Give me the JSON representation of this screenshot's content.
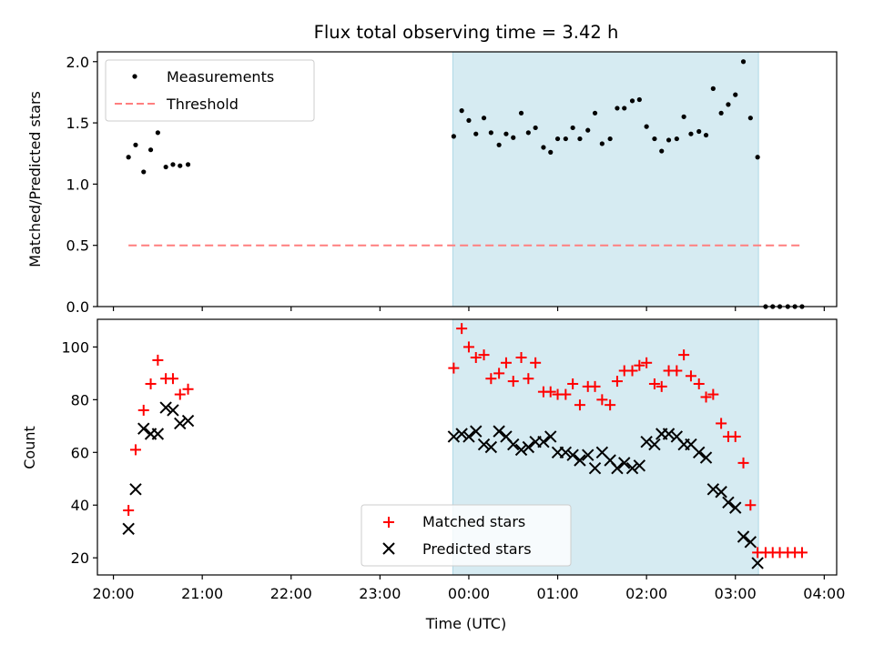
{
  "title": "Flux total observing time = 3.42 h",
  "colors": {
    "measurement": "#000000",
    "threshold": "#ff7f7f",
    "matched": "#ff0000",
    "predicted": "#000000",
    "observing_window": "#add8e6"
  },
  "x_axis": {
    "label": "Time (UTC)",
    "ticks": [
      {
        "hour": 20,
        "label": "20:00"
      },
      {
        "hour": 21,
        "label": "21:00"
      },
      {
        "hour": 22,
        "label": "22:00"
      },
      {
        "hour": 23,
        "label": "23:00"
      },
      {
        "hour": 24,
        "label": "00:00"
      },
      {
        "hour": 25,
        "label": "01:00"
      },
      {
        "hour": 26,
        "label": "02:00"
      },
      {
        "hour": 27,
        "label": "03:00"
      },
      {
        "hour": 28,
        "label": "04:00"
      }
    ]
  },
  "chart_data": [
    {
      "type": "scatter",
      "name": "top-panel",
      "xlabel": "Time (UTC)",
      "ylabel": "Matched/Predicted stars",
      "xlim": [
        19.82,
        28.14
      ],
      "ylim": [
        0.0,
        2.08
      ],
      "yticks": [
        {
          "value": 0.0,
          "label": "0.0"
        },
        {
          "value": 0.5,
          "label": "0.5"
        },
        {
          "value": 1.0,
          "label": "1.0"
        },
        {
          "value": 1.5,
          "label": "1.5"
        },
        {
          "value": 2.0,
          "label": "2.0"
        }
      ],
      "show_x_tick_labels": false,
      "shaded_span": [
        23.82,
        27.26
      ],
      "legend": {
        "placement": "upper left",
        "entries": [
          {
            "label": "Measurements",
            "marker": "dot",
            "color": "#000000"
          },
          {
            "label": "Threshold",
            "marker": "dashed-line",
            "color": "#ff7f7f"
          }
        ]
      },
      "series": [
        {
          "name": "Measurements",
          "marker": "dot",
          "color": "#000000",
          "x": [
            20.17,
            20.25,
            20.34,
            20.42,
            20.5,
            20.59,
            20.67,
            20.75,
            20.84,
            23.83,
            23.92,
            24.0,
            24.08,
            24.17,
            24.25,
            24.34,
            24.42,
            24.5,
            24.59,
            24.67,
            24.75,
            24.84,
            24.92,
            25.0,
            25.09,
            25.17,
            25.25,
            25.34,
            25.42,
            25.5,
            25.59,
            25.67,
            25.75,
            25.84,
            25.92,
            26.0,
            26.09,
            26.17,
            26.25,
            26.34,
            26.42,
            26.5,
            26.59,
            26.67,
            26.75,
            26.84,
            26.92,
            27.0,
            27.09,
            27.17,
            27.25,
            27.34,
            27.42,
            27.5,
            27.59,
            27.67,
            27.75
          ],
          "y": [
            1.22,
            1.32,
            1.1,
            1.28,
            1.42,
            1.14,
            1.16,
            1.15,
            1.16,
            1.39,
            1.6,
            1.52,
            1.41,
            1.54,
            1.42,
            1.32,
            1.41,
            1.38,
            1.58,
            1.42,
            1.46,
            1.3,
            1.26,
            1.37,
            1.37,
            1.46,
            1.37,
            1.44,
            1.58,
            1.33,
            1.37,
            1.62,
            1.62,
            1.68,
            1.69,
            1.47,
            1.37,
            1.27,
            1.36,
            1.37,
            1.55,
            1.41,
            1.43,
            1.4,
            1.78,
            1.58,
            1.65,
            1.73,
            2.0,
            1.54,
            1.22,
            0.0,
            0.0,
            0.0,
            0.0,
            0.0,
            0.0
          ]
        },
        {
          "name": "Threshold",
          "marker": "dashed-line",
          "color": "#ff7f7f",
          "x": [
            20.17,
            27.75
          ],
          "y": [
            0.5,
            0.5
          ]
        }
      ]
    },
    {
      "type": "scatter",
      "name": "bottom-panel",
      "xlabel": "Time (UTC)",
      "ylabel": "Count",
      "xlim": [
        19.82,
        28.14
      ],
      "ylim": [
        13.5,
        110.5
      ],
      "yticks": [
        {
          "value": 20,
          "label": "20"
        },
        {
          "value": 40,
          "label": "40"
        },
        {
          "value": 60,
          "label": "60"
        },
        {
          "value": 80,
          "label": "80"
        },
        {
          "value": 100,
          "label": "100"
        }
      ],
      "show_x_tick_labels": true,
      "shaded_span": [
        23.82,
        27.26
      ],
      "legend": {
        "placement": "lower center",
        "entries": [
          {
            "label": "Matched stars",
            "marker": "plus",
            "color": "#ff0000"
          },
          {
            "label": "Predicted stars",
            "marker": "x",
            "color": "#000000"
          }
        ]
      },
      "series": [
        {
          "name": "Matched stars",
          "marker": "plus",
          "color": "#ff0000",
          "x": [
            20.17,
            20.25,
            20.34,
            20.42,
            20.5,
            20.59,
            20.67,
            20.75,
            20.84,
            23.83,
            23.92,
            24.0,
            24.08,
            24.17,
            24.25,
            24.34,
            24.42,
            24.5,
            24.59,
            24.67,
            24.75,
            24.84,
            24.92,
            25.0,
            25.09,
            25.17,
            25.25,
            25.34,
            25.42,
            25.5,
            25.59,
            25.67,
            25.75,
            25.84,
            25.92,
            26.0,
            26.09,
            26.17,
            26.25,
            26.34,
            26.42,
            26.5,
            26.59,
            26.67,
            26.75,
            26.84,
            26.92,
            27.0,
            27.09,
            27.17,
            27.25,
            27.34,
            27.42,
            27.5,
            27.59,
            27.67,
            27.75
          ],
          "y": [
            38,
            61,
            76,
            86,
            95,
            88,
            88,
            82,
            84,
            92,
            107,
            100,
            96,
            97,
            88,
            90,
            94,
            87,
            96,
            88,
            94,
            83,
            83,
            82,
            82,
            86,
            78,
            85,
            85,
            80,
            78,
            87,
            91,
            91,
            93,
            94,
            86,
            85,
            91,
            91,
            97,
            89,
            86,
            81,
            82,
            71,
            66,
            66,
            56,
            40,
            22,
            22,
            22,
            22,
            22,
            22,
            22
          ]
        },
        {
          "name": "Predicted stars",
          "marker": "x",
          "color": "#000000",
          "x": [
            20.17,
            20.25,
            20.34,
            20.42,
            20.5,
            20.59,
            20.67,
            20.75,
            20.84,
            23.83,
            23.92,
            24.0,
            24.08,
            24.17,
            24.25,
            24.34,
            24.42,
            24.5,
            24.59,
            24.67,
            24.75,
            24.84,
            24.92,
            25.0,
            25.09,
            25.17,
            25.25,
            25.34,
            25.42,
            25.5,
            25.59,
            25.67,
            25.75,
            25.84,
            25.92,
            26.0,
            26.09,
            26.17,
            26.25,
            26.34,
            26.42,
            26.5,
            26.59,
            26.67,
            26.75,
            26.84,
            26.92,
            27.0,
            27.09,
            27.17,
            27.25
          ],
          "y": [
            31,
            46,
            69,
            67,
            67,
            77,
            76,
            71,
            72,
            66,
            67,
            66,
            68,
            63,
            62,
            68,
            66,
            63,
            61,
            62,
            64,
            64,
            66,
            60,
            60,
            59,
            57,
            59,
            54,
            60,
            57,
            54,
            56,
            54,
            55,
            64,
            63,
            67,
            67,
            66,
            63,
            63,
            60,
            58,
            46,
            45,
            41,
            39,
            28,
            26,
            18
          ]
        }
      ]
    }
  ]
}
